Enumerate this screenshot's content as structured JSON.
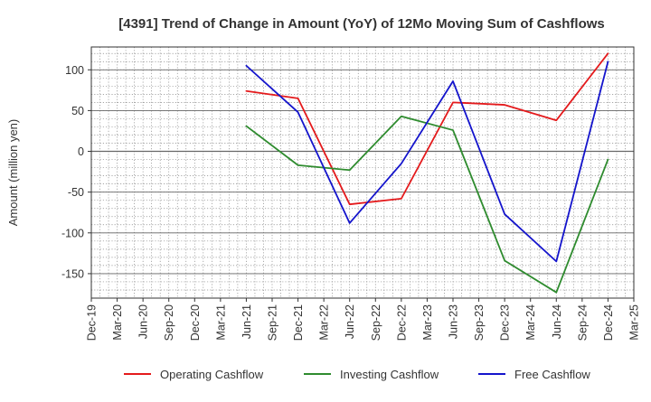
{
  "chart_data": {
    "type": "line",
    "title": "[4391]  Trend of Change in Amount (YoY) of 12Mo Moving Sum of Cashflows",
    "xlabel": "",
    "ylabel": "Amount (million yen)",
    "ylim": [
      -180,
      128
    ],
    "yticks": [
      100,
      50,
      0,
      -50,
      -100,
      -150
    ],
    "ytick_labels": [
      "100",
      "50",
      "0",
      "-50",
      "-100",
      "-150"
    ],
    "categories": [
      "Dec-19",
      "Mar-20",
      "Jun-20",
      "Sep-20",
      "Dec-20",
      "Mar-21",
      "Jun-21",
      "Sep-21",
      "Dec-21",
      "Mar-22",
      "Jun-22",
      "Sep-22",
      "Dec-22",
      "Mar-23",
      "Jun-23",
      "Sep-23",
      "Dec-23",
      "Mar-24",
      "Jun-24",
      "Sep-24",
      "Dec-24",
      "Mar-25"
    ],
    "grid": true,
    "legend": "bottom",
    "series": [
      {
        "name": "Operating Cashflow",
        "color": "#e41a1c",
        "values": [
          null,
          null,
          null,
          null,
          null,
          null,
          74,
          null,
          65,
          null,
          -65,
          null,
          -58,
          null,
          60,
          null,
          57,
          null,
          38,
          null,
          120,
          null
        ]
      },
      {
        "name": "Investing Cashflow",
        "color": "#2e8b2e",
        "values": [
          null,
          null,
          null,
          null,
          null,
          null,
          31,
          null,
          -17,
          null,
          -23,
          null,
          43,
          null,
          26,
          null,
          -134,
          null,
          -173,
          null,
          -10,
          null
        ]
      },
      {
        "name": "Free Cashflow",
        "color": "#1414cc",
        "values": [
          null,
          null,
          null,
          null,
          null,
          null,
          105,
          null,
          48,
          null,
          -88,
          null,
          -15,
          null,
          86,
          null,
          -77,
          null,
          -135,
          null,
          110,
          null
        ]
      }
    ]
  }
}
